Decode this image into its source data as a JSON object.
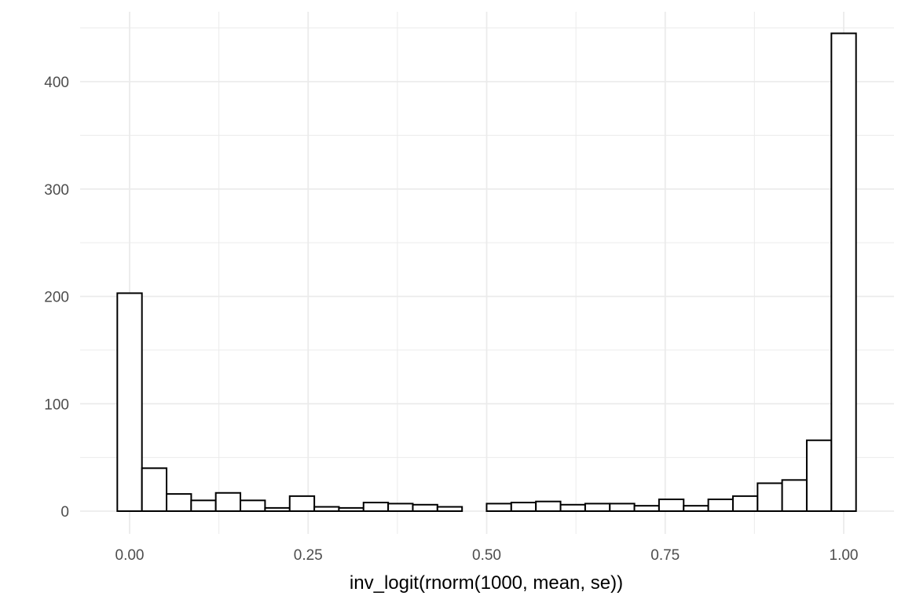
{
  "chart_data": {
    "type": "bar",
    "subtype": "histogram",
    "title": "",
    "xlabel": "inv_logit(rnorm(1000, mean, se))",
    "ylabel": "",
    "xlim": [
      -0.05,
      1.05
    ],
    "ylim": [
      0,
      450
    ],
    "grid": true,
    "x_ticks": [
      0.0,
      0.25,
      0.5,
      0.75,
      1.0
    ],
    "x_tick_labels": [
      "0.00",
      "0.25",
      "0.50",
      "0.75",
      "1.00"
    ],
    "y_ticks": [
      0,
      100,
      200,
      300,
      400
    ],
    "y_tick_labels": [
      "0",
      "100",
      "200",
      "300",
      "400"
    ],
    "bin_width": 0.0345,
    "bin_centers": [
      0.0,
      0.0345,
      0.069,
      0.1034,
      0.1379,
      0.1724,
      0.2069,
      0.2414,
      0.2759,
      0.3103,
      0.3448,
      0.3793,
      0.4138,
      0.4483,
      0.4828,
      0.5172,
      0.5517,
      0.5862,
      0.6207,
      0.6552,
      0.6897,
      0.7241,
      0.7586,
      0.7931,
      0.8276,
      0.8621,
      0.8966,
      0.931,
      0.9655,
      1.0
    ],
    "counts": [
      203,
      40,
      16,
      10,
      17,
      10,
      3,
      14,
      4,
      3,
      8,
      7,
      6,
      4,
      0,
      7,
      8,
      9,
      6,
      7,
      7,
      5,
      11,
      5,
      11,
      14,
      26,
      29,
      66,
      445
    ],
    "bar_fill": "#ffffff",
    "bar_stroke": "#000000",
    "grid_color": "#ebebeb"
  }
}
